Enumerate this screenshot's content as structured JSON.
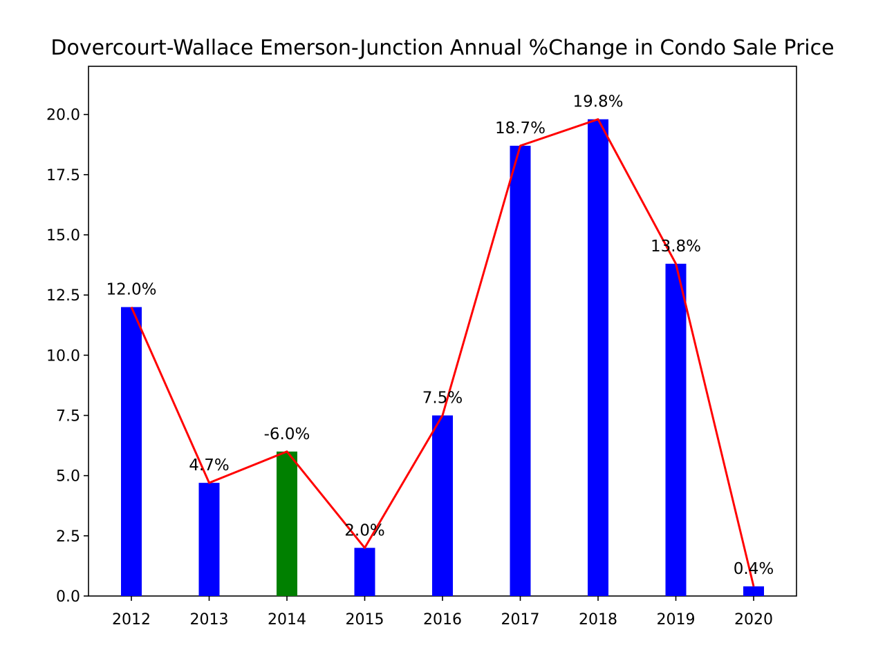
{
  "chart_data": {
    "type": "bar",
    "title": "Dovercourt-Wallace Emerson-Junction Annual %Change in Condo Sale Price",
    "xlabel": "",
    "ylabel": "",
    "categories": [
      "2012",
      "2013",
      "2014",
      "2015",
      "2016",
      "2017",
      "2018",
      "2019",
      "2020"
    ],
    "values": [
      12.0,
      4.7,
      6.0,
      2.0,
      7.5,
      18.7,
      19.8,
      13.8,
      0.4
    ],
    "data_labels": [
      "12.0%",
      "4.7%",
      "-6.0%",
      "2.0%",
      "7.5%",
      "18.7%",
      "19.8%",
      "13.8%",
      "0.4%"
    ],
    "bar_colors": [
      "#0000ff",
      "#0000ff",
      "#008000",
      "#0000ff",
      "#0000ff",
      "#0000ff",
      "#0000ff",
      "#0000ff",
      "#0000ff"
    ],
    "line_color": "#ff0000",
    "overlay": "line",
    "ylim": [
      0,
      22
    ],
    "yticks": [
      "0.0",
      "2.5",
      "5.0",
      "7.5",
      "10.0",
      "12.5",
      "15.0",
      "17.5",
      "20.0"
    ],
    "grid": false,
    "legend": "none"
  }
}
